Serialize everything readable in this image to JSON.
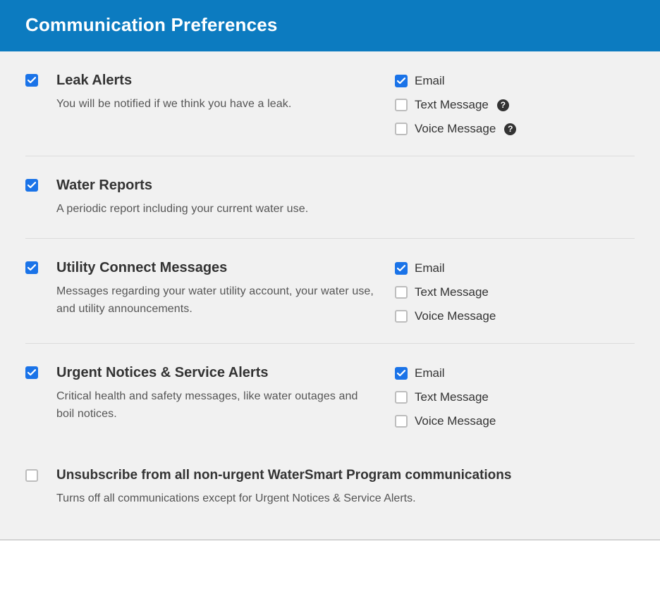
{
  "colors": {
    "header_bg": "#0c7bc0",
    "accent": "#1a73e8",
    "checkbox_border": "#bdbdbd"
  },
  "header": {
    "title": "Communication Preferences"
  },
  "sections": [
    {
      "id": "leak-alerts",
      "title": "Leak Alerts",
      "description": "You will be notified if we think you have a leak.",
      "master_checked": true,
      "channels": [
        {
          "label": "Email",
          "checked": true,
          "help": false
        },
        {
          "label": "Text Message",
          "checked": false,
          "help": true
        },
        {
          "label": "Voice Message",
          "checked": false,
          "help": true
        }
      ]
    },
    {
      "id": "water-reports",
      "title": "Water Reports",
      "description": "A periodic report including your current water use.",
      "master_checked": true,
      "channels": []
    },
    {
      "id": "utility-connect",
      "title": "Utility Connect Messages",
      "description": "Messages regarding your water utility account, your water use, and utility announcements.",
      "master_checked": true,
      "channels": [
        {
          "label": "Email",
          "checked": true,
          "help": false
        },
        {
          "label": "Text Message",
          "checked": false,
          "help": false
        },
        {
          "label": "Voice Message",
          "checked": false,
          "help": false
        }
      ]
    },
    {
      "id": "urgent-notices",
      "title": "Urgent Notices & Service Alerts",
      "description": "Critical health and safety messages, like water outages and boil notices.",
      "master_checked": true,
      "channels": [
        {
          "label": "Email",
          "checked": true,
          "help": false
        },
        {
          "label": "Text Message",
          "checked": false,
          "help": false
        },
        {
          "label": "Voice Message",
          "checked": false,
          "help": false
        }
      ]
    }
  ],
  "unsubscribe": {
    "title": "Unsubscribe from all non-urgent WaterSmart Program communications",
    "description": "Turns off all communications except for Urgent Notices & Service Alerts.",
    "checked": false
  }
}
